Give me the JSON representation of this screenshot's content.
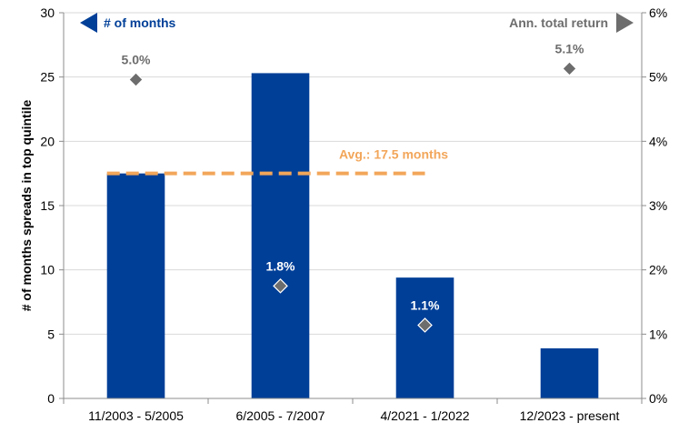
{
  "chart_data": {
    "type": "bar",
    "categories": [
      "11/2003 - 5/2005",
      "6/2005 - 7/2007",
      "4/2021 - 1/2022",
      "12/2023 - present"
    ],
    "series": [
      {
        "name": "# of months",
        "axis": "left",
        "type": "bar",
        "values": [
          17.5,
          25.3,
          9.4,
          3.9
        ],
        "color": "#003f98"
      },
      {
        "name": "Ann. total return",
        "axis": "right",
        "type": "scatter",
        "marker": "diamond",
        "values": [
          4.96,
          1.75,
          1.14,
          5.13
        ],
        "labels": [
          "5.0%",
          "1.8%",
          "1.1%",
          "5.1%"
        ],
        "color": "#6d6d6d"
      }
    ],
    "reference_line": {
      "label": "Avg.: 17.5 months",
      "value": 17.5,
      "axis": "left",
      "style": "dashed",
      "color": "#f2a65a",
      "from_category": 0,
      "to_category": 2
    },
    "ylabel": "# of months spreads in top quintile",
    "y_left": {
      "lim": [
        0,
        30
      ],
      "ticks": [
        "0",
        "5",
        "10",
        "15",
        "20",
        "25",
        "30"
      ]
    },
    "y_right": {
      "lim": [
        0,
        6
      ],
      "ticks": [
        "0%",
        "1%",
        "2%",
        "3%",
        "4%",
        "5%",
        "6%"
      ]
    },
    "legend": {
      "left": "# of months",
      "right": "Ann. total return"
    },
    "grid": true,
    "colors": {
      "bar": "#003f98",
      "marker": "#6d6d6d",
      "legend_left": "#003f98",
      "legend_right": "#6d6d6d",
      "avg": "#f2a65a",
      "grid": "#d9d9d9",
      "label_dark": "#6d6d6d",
      "label_light": "#ffffff"
    }
  }
}
